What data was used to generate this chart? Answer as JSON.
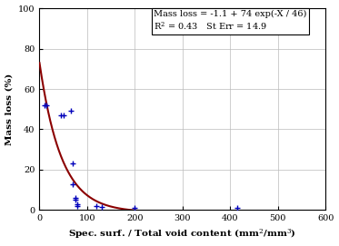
{
  "scatter_x": [
    10,
    15,
    45,
    50,
    65,
    70,
    70,
    75,
    75,
    80,
    80,
    120,
    130,
    200,
    415
  ],
  "scatter_y": [
    52,
    52,
    47,
    47,
    49,
    23,
    13,
    6,
    5,
    3,
    2,
    2,
    1.5,
    1,
    1
  ],
  "curve_params": {
    "a": -1.1,
    "b": 74,
    "c": 46
  },
  "scatter_color": "#0000bb",
  "curve_color": "#8b0000",
  "xlabel": "Spec. surf. / Total void content (mm$^2$/mm$^3$)",
  "ylabel": "Mass loss (%)",
  "annotation_line1": "Mass loss = -1.1 + 74 exp(-X / 46)",
  "annotation_line2": "R$^2$ = 0.43   St Err = 14.9",
  "xlim": [
    0,
    600
  ],
  "ylim": [
    0,
    100
  ],
  "xticks": [
    0,
    100,
    200,
    300,
    400,
    500,
    600
  ],
  "yticks": [
    0,
    20,
    40,
    60,
    80,
    100
  ],
  "background_color": "#ffffff",
  "marker": "+",
  "marker_size": 5,
  "curve_linewidth": 1.5,
  "font_family": "serif",
  "font_size_ticks": 7,
  "font_size_labels": 7.5,
  "font_size_annotation": 7
}
